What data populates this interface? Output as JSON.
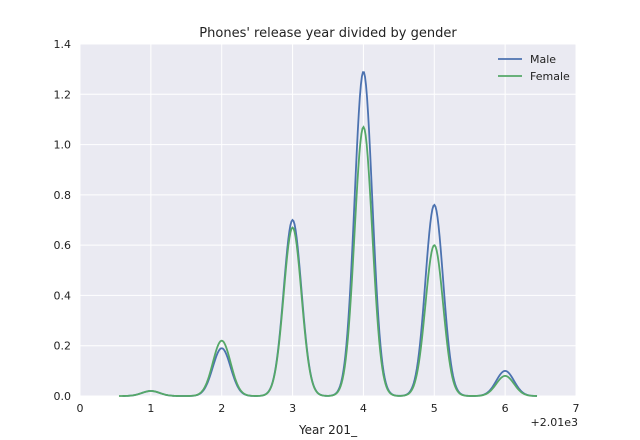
{
  "chart_data": {
    "type": "line",
    "title": "Phones' release year divided by gender",
    "xlabel": "Year 201_",
    "ylabel": "",
    "x_offset_label": "+2.01e3",
    "xlim": [
      0,
      7
    ],
    "ylim": [
      0,
      1.4
    ],
    "xticks": [
      "0",
      "1",
      "2",
      "3",
      "4",
      "5",
      "6",
      "7"
    ],
    "yticks": [
      "0.0",
      "0.2",
      "0.4",
      "0.6",
      "0.8",
      "1.0",
      "1.2",
      "1.4"
    ],
    "grid": true,
    "legend_position": "top-right",
    "colors": {
      "background": "#EAEAF2",
      "grid": "#FFFFFF"
    },
    "series": [
      {
        "name": "Male",
        "color": "#4C72B0",
        "peaks": [
          {
            "x": 1,
            "y": 0.02
          },
          {
            "x": 2,
            "y": 0.19
          },
          {
            "x": 3,
            "y": 0.7
          },
          {
            "x": 4,
            "y": 1.29
          },
          {
            "x": 5,
            "y": 0.76
          },
          {
            "x": 6,
            "y": 0.1
          }
        ],
        "range": [
          0.6,
          6.45
        ]
      },
      {
        "name": "Female",
        "color": "#55A868",
        "peaks": [
          {
            "x": 1,
            "y": 0.02
          },
          {
            "x": 2,
            "y": 0.22
          },
          {
            "x": 3,
            "y": 0.67
          },
          {
            "x": 4,
            "y": 1.07
          },
          {
            "x": 5,
            "y": 0.6
          },
          {
            "x": 6,
            "y": 0.08
          }
        ],
        "range": [
          0.55,
          6.45
        ]
      }
    ]
  }
}
